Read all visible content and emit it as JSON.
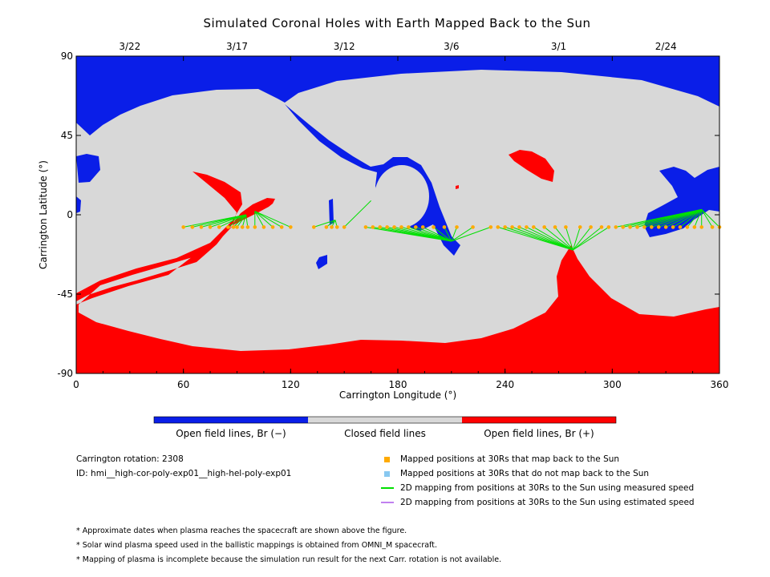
{
  "title": "Simulated Coronal Holes with Earth Mapped Back to the Sun",
  "colors": {
    "open_negative": "#0a1ee8",
    "closed": "#d8d8d8",
    "open_positive": "#ff0000",
    "mapped_back": "#ffaa00",
    "not_mapped": "#88c8f0",
    "measured_speed_line": "#00e000",
    "estimated_speed_line": "#c080f0"
  },
  "chart_data": {
    "type": "heatmap",
    "title": "Simulated Coronal Holes with Earth Mapped Back to the Sun",
    "xlabel": "Carrington Longitude (°)",
    "ylabel": "Carrington Latitude (°)",
    "xlim": [
      0,
      360
    ],
    "ylim": [
      -90,
      90
    ],
    "x_ticks": [
      0,
      60,
      120,
      180,
      240,
      300,
      360
    ],
    "y_ticks": [
      90,
      45,
      0,
      -45,
      -90
    ],
    "date_ticks": [
      {
        "label": "3/22",
        "lon": 30
      },
      {
        "label": "3/17",
        "lon": 90
      },
      {
        "label": "3/12",
        "lon": 150
      },
      {
        "label": "3/6",
        "lon": 210
      },
      {
        "label": "3/1",
        "lon": 270
      },
      {
        "label": "2/24",
        "lon": 330
      }
    ],
    "categories": [
      "Open field lines, Br (−)",
      "Closed field lines",
      "Open field lines, Br (+)"
    ],
    "mapped_latitude": -7,
    "mapped_points_lon": [
      60,
      65,
      70,
      75,
      80,
      85,
      88,
      90,
      93,
      96,
      100,
      105,
      110,
      115,
      120,
      133,
      140,
      143,
      146,
      150,
      162,
      166,
      170,
      174,
      178,
      182,
      186,
      190,
      194,
      200,
      206,
      213,
      222,
      232,
      236,
      240,
      244,
      248,
      252,
      256,
      262,
      268,
      274,
      282,
      288,
      294,
      298,
      302,
      306,
      310,
      314,
      318,
      322,
      326,
      330,
      334,
      338,
      342,
      346,
      350,
      356,
      360
    ]
  },
  "colorbar": {
    "labels": [
      "Open field lines, Br (−)",
      "Closed field lines",
      "Open field lines, Br (+)"
    ]
  },
  "info": {
    "rotation": "Carrington rotation: 2308",
    "id": "ID: hmi__high-cor-poly-exp01__high-hel-poly-exp01"
  },
  "legend": [
    {
      "label": "Mapped positions at 30Rs that map back to the Sun",
      "kind": "square",
      "color": "#ffaa00"
    },
    {
      "label": "Mapped positions at 30Rs that do not map back to the Sun",
      "kind": "square",
      "color": "#88c8f0"
    },
    {
      "label": "2D mapping from positions at 30Rs to the Sun using measured speed",
      "kind": "line",
      "color": "#00e000"
    },
    {
      "label": "2D mapping from positions at 30Rs to the Sun using estimated speed",
      "kind": "line",
      "color": "#c080f0"
    }
  ],
  "notes": [
    "* Approximate dates when plasma reaches the spacecraft are shown above the figure.",
    "* Solar wind plasma speed used in the ballistic mappings is obtained from OMNI_M spacecraft.",
    "* Mapping of plasma is incomplete because the simulation run result for the next Carr. rotation is not available."
  ]
}
